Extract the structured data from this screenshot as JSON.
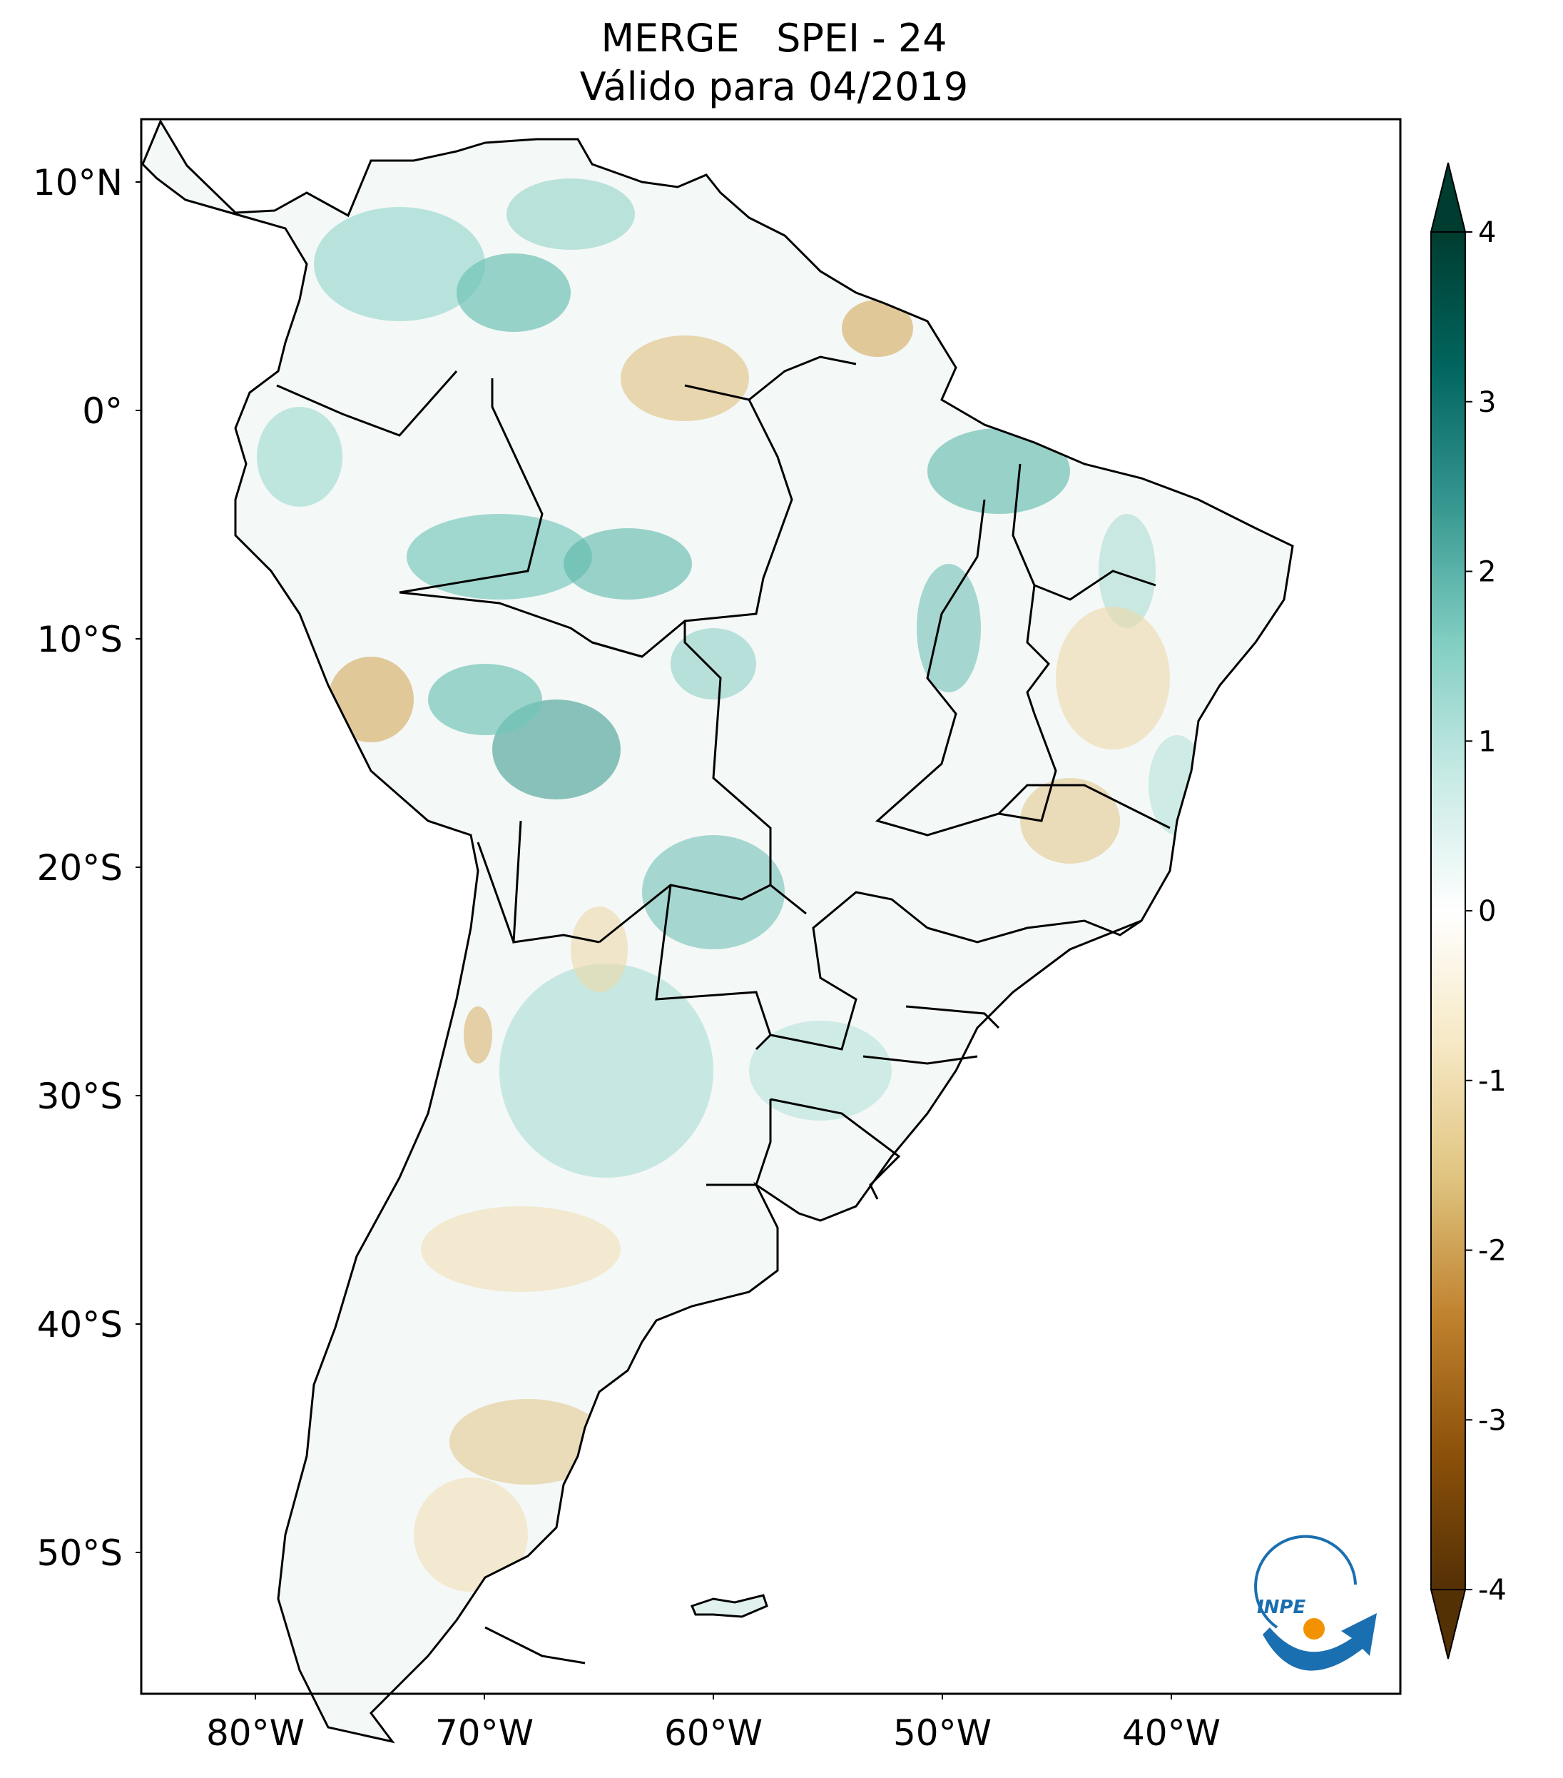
{
  "title": {
    "line1": "MERGE   SPEI - 24",
    "line2": "Válido para 04/2019"
  },
  "map": {
    "lon_range": [
      -85,
      -30
    ],
    "lat_range": [
      -56,
      13
    ],
    "lat_ticks": [
      {
        "value": 10,
        "label": "10°N"
      },
      {
        "value": 0,
        "label": "0°"
      },
      {
        "value": -10,
        "label": "10°S"
      },
      {
        "value": -20,
        "label": "20°S"
      },
      {
        "value": -30,
        "label": "30°S"
      },
      {
        "value": -40,
        "label": "40°S"
      },
      {
        "value": -50,
        "label": "50°S"
      }
    ],
    "lon_ticks": [
      {
        "value": -80,
        "label": "80°W"
      },
      {
        "value": -70,
        "label": "70°W"
      },
      {
        "value": -60,
        "label": "60°W"
      },
      {
        "value": -50,
        "label": "50°W"
      },
      {
        "value": -40,
        "label": "40°W"
      }
    ]
  },
  "colorbar": {
    "range": [
      -4,
      4
    ],
    "ticks": [
      "4",
      "3",
      "2",
      "1",
      "0",
      "-1",
      "-2",
      "-3",
      "-4"
    ],
    "extend": "both",
    "colormap": "BrBG",
    "colors": [
      "#543005",
      "#8c510a",
      "#bf812d",
      "#dfc27d",
      "#f6e8c3",
      "#ffffff",
      "#c7eae5",
      "#80cdc1",
      "#35978f",
      "#01665e",
      "#003c30"
    ]
  },
  "logo": {
    "text": "INPE",
    "colors": [
      "#1a6fb0",
      "#f39200"
    ]
  }
}
